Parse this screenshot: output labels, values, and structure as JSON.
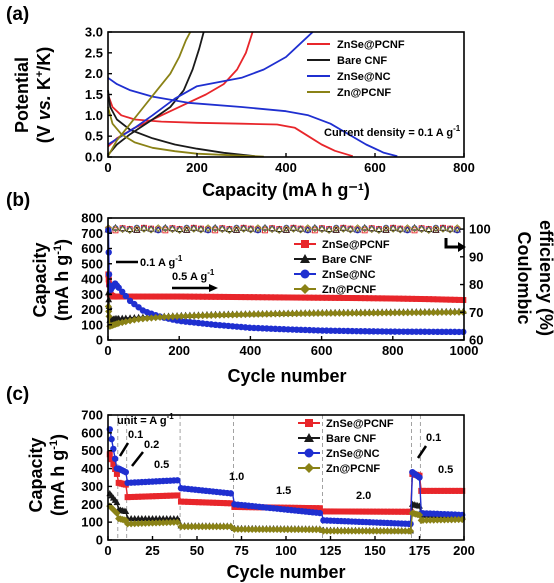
{
  "chart_data": [
    {
      "panel_label": "(a)",
      "type": "line",
      "xlabel": "Capacity (mA h g⁻¹)",
      "ylabel_line1": "Potential",
      "ylabel_line2_parts": [
        "(V ",
        "vs.",
        " K",
        "+",
        "/K)"
      ],
      "xlim": [
        0,
        800
      ],
      "ylim": [
        0,
        3.0
      ],
      "xticks": [
        "0",
        "200",
        "400",
        "600",
        "800"
      ],
      "yticks": [
        "0.0",
        "0.5",
        "1.0",
        "1.5",
        "2.0",
        "2.5",
        "3.0"
      ],
      "legend_position": "top-right",
      "annotation": {
        "text": "Current density = 0.1 A g",
        "sup": "-1"
      },
      "series": [
        {
          "name": "ZnSe@PCNF",
          "color": "#e8262b",
          "discharge": [
            [
              0,
              1.5
            ],
            [
              10,
              1.2
            ],
            [
              30,
              1.0
            ],
            [
              60,
              0.9
            ],
            [
              120,
              0.85
            ],
            [
              200,
              0.82
            ],
            [
              300,
              0.8
            ],
            [
              380,
              0.78
            ],
            [
              420,
              0.7
            ],
            [
              450,
              0.5
            ],
            [
              480,
              0.3
            ],
            [
              510,
              0.15
            ],
            [
              550,
              0.02
            ]
          ],
          "charge": [
            [
              0,
              0.25
            ],
            [
              20,
              0.45
            ],
            [
              60,
              0.7
            ],
            [
              100,
              0.9
            ],
            [
              140,
              1.1
            ],
            [
              180,
              1.3
            ],
            [
              220,
              1.5
            ],
            [
              260,
              1.75
            ],
            [
              290,
              2.1
            ],
            [
              310,
              2.5
            ],
            [
              325,
              3.0
            ]
          ]
        },
        {
          "name": "Bare CNF",
          "color": "#1a1a1a",
          "discharge": [
            [
              0,
              1.6
            ],
            [
              5,
              1.2
            ],
            [
              20,
              0.9
            ],
            [
              50,
              0.65
            ],
            [
              100,
              0.45
            ],
            [
              150,
              0.3
            ],
            [
              200,
              0.2
            ],
            [
              260,
              0.1
            ],
            [
              330,
              0.02
            ]
          ],
          "charge": [
            [
              0,
              0.05
            ],
            [
              20,
              0.3
            ],
            [
              50,
              0.55
            ],
            [
              100,
              0.9
            ],
            [
              140,
              1.2
            ],
            [
              170,
              1.6
            ],
            [
              190,
              2.1
            ],
            [
              205,
              2.6
            ],
            [
              215,
              3.0
            ]
          ]
        },
        {
          "name": "ZnSe@NC",
          "color": "#1f2fd0",
          "discharge": [
            [
              0,
              1.9
            ],
            [
              20,
              1.75
            ],
            [
              50,
              1.6
            ],
            [
              100,
              1.45
            ],
            [
              180,
              1.3
            ],
            [
              300,
              1.2
            ],
            [
              400,
              1.1
            ],
            [
              450,
              1.0
            ],
            [
              500,
              0.8
            ],
            [
              540,
              0.55
            ],
            [
              580,
              0.3
            ],
            [
              620,
              0.1
            ],
            [
              650,
              0.02
            ]
          ],
          "charge": [
            [
              0,
              0.3
            ],
            [
              30,
              0.5
            ],
            [
              60,
              0.7
            ],
            [
              100,
              1.0
            ],
            [
              150,
              1.4
            ],
            [
              200,
              1.7
            ],
            [
              250,
              1.8
            ],
            [
              300,
              1.9
            ],
            [
              350,
              2.1
            ],
            [
              400,
              2.4
            ],
            [
              440,
              2.8
            ],
            [
              460,
              3.0
            ]
          ]
        },
        {
          "name": "Zn@PCNF",
          "color": "#8a8216",
          "discharge": [
            [
              0,
              1.2
            ],
            [
              10,
              0.8
            ],
            [
              30,
              0.55
            ],
            [
              60,
              0.35
            ],
            [
              100,
              0.22
            ],
            [
              150,
              0.14
            ],
            [
              200,
              0.08
            ],
            [
              280,
              0.04
            ],
            [
              350,
              0.01
            ]
          ],
          "charge": [
            [
              0,
              0.02
            ],
            [
              20,
              0.4
            ],
            [
              50,
              0.8
            ],
            [
              80,
              1.2
            ],
            [
              110,
              1.6
            ],
            [
              140,
              2.0
            ],
            [
              160,
              2.4
            ],
            [
              175,
              2.8
            ],
            [
              185,
              3.0
            ]
          ]
        }
      ]
    },
    {
      "panel_label": "(b)",
      "type": "scatter",
      "xlabel": "Cycle number",
      "ylabel_line1": "Capacity",
      "ylabel_line2_parts": [
        "(mA h g",
        "-1",
        ")"
      ],
      "y2label_line1": "Coulombic",
      "y2label_line2": "efficiency (%)",
      "xlim": [
        0,
        1000
      ],
      "ylim": [
        0,
        800
      ],
      "y2lim": [
        60,
        104
      ],
      "xticks": [
        "0",
        "200",
        "400",
        "600",
        "800",
        "1000"
      ],
      "yticks": [
        "0",
        "100",
        "200",
        "300",
        "400",
        "500",
        "600",
        "700",
        "800"
      ],
      "y2ticks": [
        "60",
        "70",
        "80",
        "90",
        "100"
      ],
      "legend_position": "center-right",
      "annotations": [
        {
          "text": "0.1 A g",
          "sup": "-1"
        },
        {
          "text": "0.5 A g",
          "sup": "-1"
        }
      ],
      "series": [
        {
          "name": "ZnSe@PCNF",
          "color": "#e8262b",
          "marker": "square",
          "capacity": [
            [
              1,
              430
            ],
            [
              5,
              300
            ],
            [
              15,
              285
            ],
            [
              50,
              285
            ],
            [
              100,
              285
            ],
            [
              200,
              285
            ],
            [
              300,
              283
            ],
            [
              400,
              281
            ],
            [
              500,
              279
            ],
            [
              600,
              277
            ],
            [
              700,
              275
            ],
            [
              800,
              272
            ],
            [
              900,
              268
            ],
            [
              1000,
              262
            ]
          ]
        },
        {
          "name": "Bare CNF",
          "color": "#1a1a1a",
          "marker": "triangle",
          "capacity": [
            [
              1,
              310
            ],
            [
              5,
              130
            ],
            [
              20,
              140
            ],
            [
              100,
              150
            ],
            [
              200,
              160
            ],
            [
              300,
              168
            ],
            [
              400,
              172
            ],
            [
              500,
              176
            ],
            [
              600,
              180
            ],
            [
              700,
              182
            ],
            [
              800,
              184
            ],
            [
              900,
              186
            ],
            [
              1000,
              188
            ]
          ]
        },
        {
          "name": "ZnSe@NC",
          "color": "#1f2fd0",
          "marker": "circle",
          "capacity": [
            [
              1,
              720
            ],
            [
              3,
              430
            ],
            [
              6,
              320
            ],
            [
              10,
              340
            ],
            [
              20,
              370
            ],
            [
              35,
              330
            ],
            [
              60,
              260
            ],
            [
              100,
              190
            ],
            [
              150,
              150
            ],
            [
              200,
              125
            ],
            [
              300,
              100
            ],
            [
              400,
              80
            ],
            [
              500,
              70
            ],
            [
              600,
              62
            ],
            [
              700,
              58
            ],
            [
              800,
              55
            ],
            [
              900,
              54
            ],
            [
              1000,
              53
            ]
          ]
        },
        {
          "name": "Zn@PCNF",
          "color": "#8a8216",
          "marker": "diamond",
          "capacity": [
            [
              1,
              220
            ],
            [
              5,
              90
            ],
            [
              30,
              110
            ],
            [
              80,
              135
            ],
            [
              150,
              150
            ],
            [
              200,
              155
            ],
            [
              300,
              162
            ],
            [
              400,
              168
            ],
            [
              500,
              172
            ],
            [
              600,
              175
            ],
            [
              700,
              176
            ],
            [
              800,
              178
            ],
            [
              900,
              180
            ],
            [
              1000,
              182
            ]
          ]
        }
      ],
      "coulombic_efficiency_approx": 100
    },
    {
      "panel_label": "(c)",
      "type": "scatter",
      "xlabel": "Cycle number",
      "ylabel_line1": "Capacity",
      "ylabel_line2_parts": [
        "(mA h g",
        "-1",
        ")"
      ],
      "xlim": [
        0,
        200
      ],
      "ylim": [
        0,
        700
      ],
      "xticks": [
        "0",
        "25",
        "50",
        "75",
        "100",
        "125",
        "150",
        "175",
        "200"
      ],
      "yticks": [
        "0",
        "100",
        "200",
        "300",
        "400",
        "500",
        "600",
        "700"
      ],
      "legend_position": "top-right",
      "unit_label": {
        "text": "unit = A g",
        "sup": "-1"
      },
      "rate_labels": [
        "0.1",
        "0.2",
        "0.5",
        "1.0",
        "1.5",
        "2.0",
        "0.1",
        "0.5"
      ],
      "rate_boundaries": [
        5,
        10,
        40,
        70,
        120,
        170,
        175
      ],
      "series": [
        {
          "name": "ZnSe@PCNF",
          "color": "#e8262b",
          "marker": "square",
          "segments": [
            [
              1,
              5,
              [
                480,
                370
              ]
            ],
            [
              6,
              10,
              [
                320,
                310
              ]
            ],
            [
              11,
              40,
              [
                240,
                250
              ]
            ],
            [
              41,
              70,
              [
                215,
                205
              ]
            ],
            [
              71,
              120,
              [
                185,
                178
              ]
            ],
            [
              121,
              170,
              [
                160,
                158
              ]
            ],
            [
              171,
              175,
              [
                370,
                360
              ]
            ],
            [
              176,
              200,
              [
                275,
                275
              ]
            ]
          ]
        },
        {
          "name": "Bare CNF",
          "color": "#1a1a1a",
          "marker": "triangle",
          "segments": [
            [
              1,
              5,
              [
                260,
                210
              ]
            ],
            [
              6,
              10,
              [
                170,
                160
              ]
            ],
            [
              11,
              40,
              [
                120,
                120
              ]
            ],
            [
              41,
              70,
              [
                80,
                78
              ]
            ],
            [
              71,
              120,
              [
                65,
                62
              ]
            ],
            [
              121,
              170,
              [
                55,
                52
              ]
            ],
            [
              171,
              175,
              [
                200,
                190
              ]
            ],
            [
              176,
              200,
              [
                140,
                135
              ]
            ]
          ]
        },
        {
          "name": "ZnSe@NC",
          "color": "#1f2fd0",
          "marker": "circle",
          "segments": [
            [
              1,
              5,
              [
                620,
                400
              ]
            ],
            [
              6,
              10,
              [
                400,
                380
              ]
            ],
            [
              11,
              40,
              [
                320,
                335
              ]
            ],
            [
              41,
              70,
              [
                290,
                260
              ]
            ],
            [
              71,
              120,
              [
                200,
                150
              ]
            ],
            [
              121,
              170,
              [
                110,
                90
              ]
            ],
            [
              171,
              175,
              [
                380,
                350
              ]
            ],
            [
              176,
              200,
              [
                150,
                140
              ]
            ]
          ]
        },
        {
          "name": "Zn@PCNF",
          "color": "#8a8216",
          "marker": "diamond",
          "segments": [
            [
              1,
              5,
              [
                190,
                150
              ]
            ],
            [
              6,
              10,
              [
                120,
                110
              ]
            ],
            [
              11,
              40,
              [
                90,
                100
              ]
            ],
            [
              41,
              70,
              [
                75,
                75
              ]
            ],
            [
              71,
              120,
              [
                60,
                58
              ]
            ],
            [
              121,
              170,
              [
                50,
                50
              ]
            ],
            [
              171,
              175,
              [
                150,
                140
              ]
            ],
            [
              176,
              200,
              [
                110,
                115
              ]
            ]
          ]
        }
      ]
    }
  ]
}
